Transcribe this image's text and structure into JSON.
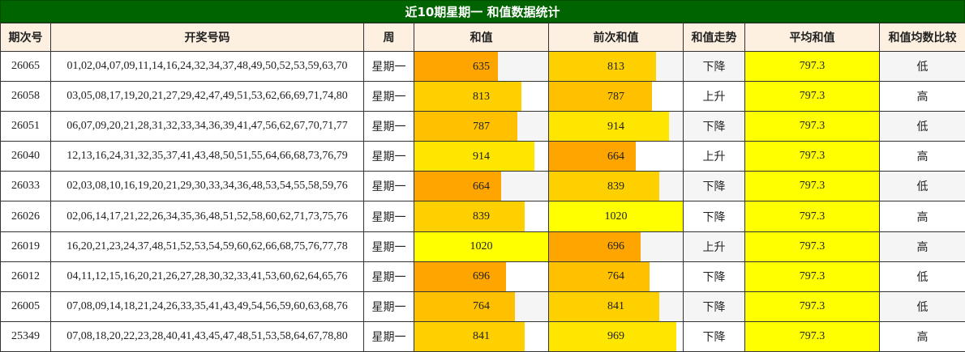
{
  "title": "近10期星期一 和值数据统计",
  "headers": [
    "期次号",
    "开奖号码",
    "周",
    "和值",
    "前次和值",
    "和值走势",
    "平均和值",
    "和值均数比较"
  ],
  "rows": [
    {
      "period": "26065",
      "numbers": "01,02,04,07,09,11,14,16,24,32,34,37,48,49,50,52,53,59,63,70",
      "week": "星期一",
      "sum": 635,
      "prev_sum": 813,
      "trend": "下降",
      "avg": "797.3",
      "compare": "低"
    },
    {
      "period": "26058",
      "numbers": "03,05,08,17,19,20,21,27,29,42,47,49,51,53,62,66,69,71,74,80",
      "week": "星期一",
      "sum": 813,
      "prev_sum": 787,
      "trend": "上升",
      "avg": "797.3",
      "compare": "高"
    },
    {
      "period": "26051",
      "numbers": "06,07,09,20,21,28,31,32,33,34,36,39,41,47,56,62,67,70,71,77",
      "week": "星期一",
      "sum": 787,
      "prev_sum": 914,
      "trend": "下降",
      "avg": "797.3",
      "compare": "低"
    },
    {
      "period": "26040",
      "numbers": "12,13,16,24,31,32,35,37,41,43,48,50,51,55,64,66,68,73,76,79",
      "week": "星期一",
      "sum": 914,
      "prev_sum": 664,
      "trend": "上升",
      "avg": "797.3",
      "compare": "高"
    },
    {
      "period": "26033",
      "numbers": "02,03,08,10,16,19,20,21,29,30,33,34,36,48,53,54,55,58,59,76",
      "week": "星期一",
      "sum": 664,
      "prev_sum": 839,
      "trend": "下降",
      "avg": "797.3",
      "compare": "低"
    },
    {
      "period": "26026",
      "numbers": "02,06,14,17,21,22,26,34,35,36,48,51,52,58,60,62,71,73,75,76",
      "week": "星期一",
      "sum": 839,
      "prev_sum": 1020,
      "trend": "下降",
      "avg": "797.3",
      "compare": "高"
    },
    {
      "period": "26019",
      "numbers": "16,20,21,23,24,37,48,51,52,53,54,59,60,62,66,68,75,76,77,78",
      "week": "星期一",
      "sum": 1020,
      "prev_sum": 696,
      "trend": "上升",
      "avg": "797.3",
      "compare": "高"
    },
    {
      "period": "26012",
      "numbers": "04,11,12,15,16,20,21,26,27,28,30,32,33,41,53,60,62,64,65,76",
      "week": "星期一",
      "sum": 696,
      "prev_sum": 764,
      "trend": "下降",
      "avg": "797.3",
      "compare": "低"
    },
    {
      "period": "26005",
      "numbers": "07,08,09,14,18,21,24,26,33,35,41,43,49,54,56,59,60,63,68,76",
      "week": "星期一",
      "sum": 764,
      "prev_sum": 841,
      "trend": "下降",
      "avg": "797.3",
      "compare": "低"
    },
    {
      "period": "25349",
      "numbers": "07,08,18,20,22,23,28,40,41,43,45,47,48,51,53,58,64,67,78,80",
      "week": "星期一",
      "sum": 841,
      "prev_sum": 969,
      "trend": "下降",
      "avg": "797.3",
      "compare": "高"
    }
  ],
  "bar_scale_max": 1020,
  "colors": {
    "title_bg": "#006400",
    "header_bg": "#fdf0e1",
    "avg_bg": "#ffff00",
    "bar_low": "#ffa500",
    "bar_mid_low": "#ffc000",
    "bar_mid": "#ffd000",
    "bar_high": "#ffe600",
    "bar_max": "#ffff00",
    "row_shade": "#f5f5f5"
  }
}
